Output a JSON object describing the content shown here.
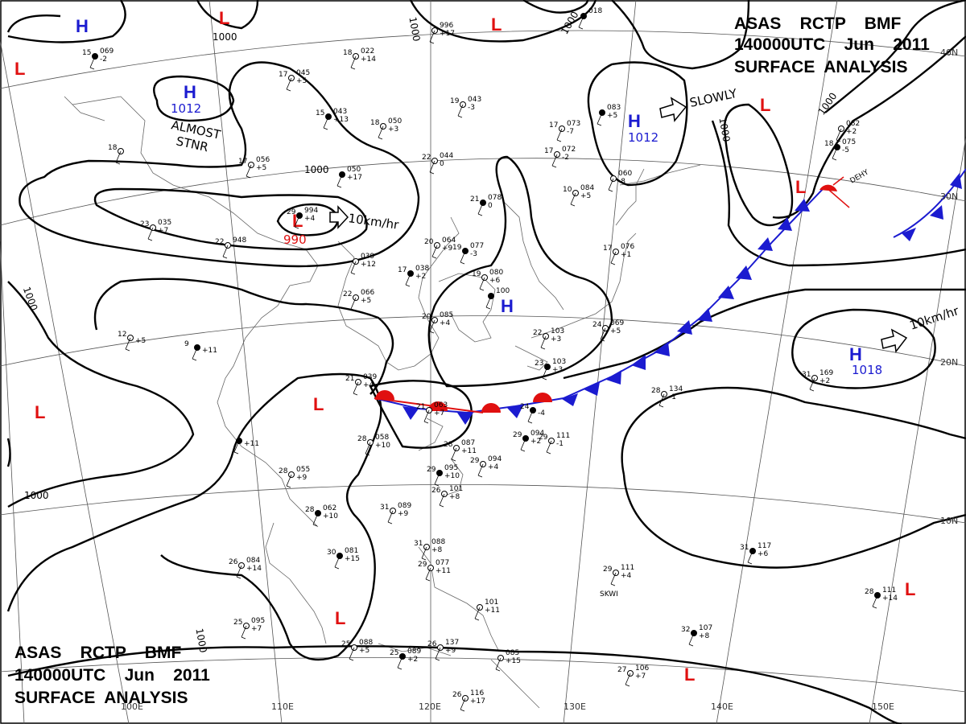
{
  "header": {
    "top_right": [
      "ASAS    RCTP    BMF",
      "140000UTC    Jun    2011",
      "SURFACE  ANALYSIS"
    ],
    "bottom_left": [
      "ASAS    RCTP    BMF",
      "140000UTC    Jun    2011",
      "SURFACE  ANALYSIS"
    ]
  },
  "colors": {
    "high": "#1b1bd0",
    "low": "#e01010",
    "cold_front": "#1b1bd0",
    "warm_front": "#e01010"
  },
  "longitude_labels": [
    "100E",
    "110E",
    "120E",
    "130E",
    "140E",
    "150E"
  ],
  "latitude_labels": [
    "40N",
    "30N",
    "20N",
    "10N"
  ],
  "isobar_labels": [
    "1000",
    "1000",
    "1000",
    "1000",
    "1000",
    "1000",
    "1000"
  ],
  "pressure_centers": [
    {
      "type": "H",
      "value": ""
    },
    {
      "type": "H",
      "value": "1012"
    },
    {
      "type": "H",
      "value": "1012"
    },
    {
      "type": "H",
      "value": ""
    },
    {
      "type": "H",
      "value": "1018"
    },
    {
      "type": "L",
      "value": ""
    },
    {
      "type": "L",
      "value": ""
    },
    {
      "type": "L",
      "value": ""
    },
    {
      "type": "L",
      "value": "990"
    },
    {
      "type": "L",
      "value": ""
    },
    {
      "type": "L",
      "value": ""
    },
    {
      "type": "L",
      "value": ""
    },
    {
      "type": "L",
      "value": ""
    },
    {
      "type": "L",
      "value": ""
    },
    {
      "type": "L",
      "value": ""
    },
    {
      "type": "L",
      "value": ""
    }
  ],
  "annotations": {
    "almost": "ALMOST",
    "stnr": "STNR",
    "slowly": "SLOWLY",
    "motion_low": "10km/hr",
    "motion_high": "10km/hr"
  },
  "stations": [
    {
      "t": "15",
      "p": "069",
      "d": "-2"
    },
    {
      "t": "18",
      "p": "022",
      "d": "+14"
    },
    {
      "t": "",
      "p": "996",
      "d": "+17"
    },
    {
      "t": "",
      "p": "018",
      "d": ""
    },
    {
      "t": "17",
      "p": "045",
      "d": "+5"
    },
    {
      "t": "19",
      "p": "043",
      "d": "-3"
    },
    {
      "t": "15",
      "p": "043",
      "d": "+13"
    },
    {
      "t": "18",
      "p": "050",
      "d": "+3"
    },
    {
      "t": "17",
      "p": "073",
      "d": "-7"
    },
    {
      "t": "",
      "p": "083",
      "d": "+5"
    },
    {
      "t": "18",
      "p": "",
      "d": ""
    },
    {
      "t": "17",
      "p": "056",
      "d": "+5"
    },
    {
      "t": "",
      "p": "050",
      "d": "+17"
    },
    {
      "t": "22",
      "p": "044",
      "d": "0"
    },
    {
      "t": "17",
      "p": "072",
      "d": "-2"
    },
    {
      "t": "18",
      "p": "075",
      "d": "-5"
    },
    {
      "t": "",
      "p": "060",
      "d": "-8"
    },
    {
      "t": "10",
      "p": "084",
      "d": "+5"
    },
    {
      "t": "21",
      "p": "078",
      "d": "0"
    },
    {
      "t": "",
      "p": "082",
      "d": "+2"
    },
    {
      "t": "23",
      "p": "035",
      "d": "+7"
    },
    {
      "t": "29",
      "p": "994",
      "d": "+4"
    },
    {
      "t": "22",
      "p": "948",
      "d": ""
    },
    {
      "t": "20",
      "p": "064",
      "d": "+9"
    },
    {
      "t": "19",
      "p": "077",
      "d": "-3"
    },
    {
      "t": "17",
      "p": "076",
      "d": "+1"
    },
    {
      "t": "",
      "p": "039",
      "d": "+12"
    },
    {
      "t": "17",
      "p": "038",
      "d": "+2"
    },
    {
      "t": "19",
      "p": "080",
      "d": "+6"
    },
    {
      "t": "22",
      "p": "066",
      "d": "+5"
    },
    {
      "t": "",
      "p": "100",
      "d": ""
    },
    {
      "t": "20",
      "p": "085",
      "d": "+4"
    },
    {
      "t": "12",
      "p": "",
      "d": "+5"
    },
    {
      "t": "9",
      "p": "",
      "d": "+11"
    },
    {
      "t": "22",
      "p": "103",
      "d": "+3"
    },
    {
      "t": "24",
      "p": "069",
      "d": "+5"
    },
    {
      "t": "23",
      "p": "103",
      "d": "+3"
    },
    {
      "t": "21",
      "p": "039",
      "d": "+4"
    },
    {
      "t": "21",
      "p": "063",
      "d": "+7"
    },
    {
      "t": "24",
      "p": "",
      "d": "-4"
    },
    {
      "t": "28",
      "p": "134",
      "d": "-1"
    },
    {
      "t": "31",
      "p": "169",
      "d": "+2"
    },
    {
      "t": "",
      "p": "",
      "d": "+11"
    },
    {
      "t": "28",
      "p": "058",
      "d": "+10"
    },
    {
      "t": "28",
      "p": "087",
      "d": "+11"
    },
    {
      "t": "29",
      "p": "094",
      "d": "+2"
    },
    {
      "t": "29",
      "p": "111",
      "d": "-1"
    },
    {
      "t": "28",
      "p": "055",
      "d": "+9"
    },
    {
      "t": "29",
      "p": "095",
      "d": "+10"
    },
    {
      "t": "29",
      "p": "094",
      "d": "+4"
    },
    {
      "t": "26",
      "p": "101",
      "d": "+8"
    },
    {
      "t": "28",
      "p": "062",
      "d": "+10"
    },
    {
      "t": "31",
      "p": "089",
      "d": "+9"
    },
    {
      "t": "31",
      "p": "088",
      "d": "+8"
    },
    {
      "t": "30",
      "p": "081",
      "d": "+15"
    },
    {
      "t": "26",
      "p": "084",
      "d": "+14"
    },
    {
      "t": "29",
      "p": "077",
      "d": "+11"
    },
    {
      "t": "31",
      "p": "117",
      "d": "+6"
    },
    {
      "t": "29",
      "p": "111",
      "d": "+4"
    },
    {
      "t": "",
      "p": "101",
      "d": "+11"
    },
    {
      "t": "28",
      "p": "111",
      "d": "+14"
    },
    {
      "t": "25",
      "p": "095",
      "d": "+7"
    },
    {
      "t": "25",
      "p": "088",
      "d": "+5"
    },
    {
      "t": "25",
      "p": "089",
      "d": "+2"
    },
    {
      "t": "26",
      "p": "137",
      "d": "+9"
    },
    {
      "t": "",
      "p": "085",
      "d": "+15"
    },
    {
      "t": "32",
      "p": "107",
      "d": "+8"
    },
    {
      "t": "27",
      "p": "106",
      "d": "+7"
    },
    {
      "t": "26",
      "p": "116",
      "d": "+17"
    }
  ],
  "station_code": "SKWI",
  "station_code2": "DEHY"
}
